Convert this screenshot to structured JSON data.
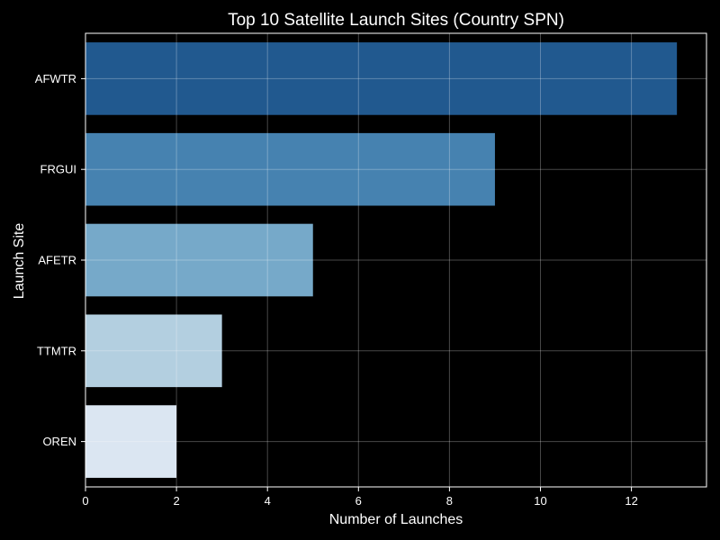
{
  "chart_data": {
    "type": "bar",
    "orientation": "horizontal",
    "title": "Top 10 Satellite Launch Sites (Country SPN)",
    "xlabel": "Number of Launches",
    "ylabel": "Launch Site",
    "categories": [
      "AFWTR",
      "FRGUI",
      "AFETR",
      "TTMTR",
      "OREN"
    ],
    "values": [
      13,
      9,
      5,
      3,
      2
    ],
    "bar_colors": [
      "#21598f",
      "#4682b0",
      "#76a9c9",
      "#b3cfe0",
      "#dbe6f2"
    ],
    "xlim": [
      0,
      13.65
    ],
    "xticks": [
      0,
      2,
      4,
      6,
      8,
      10,
      12
    ],
    "grid": true,
    "background": "#000000",
    "text_color": "#ffffff"
  }
}
